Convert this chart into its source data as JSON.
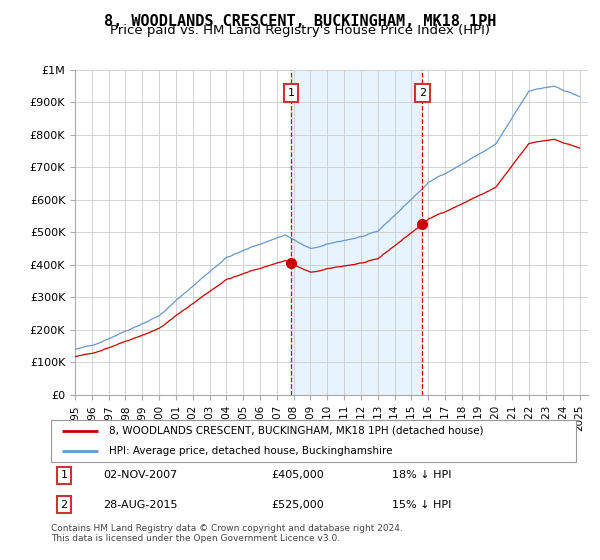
{
  "title": "8, WOODLANDS CRESCENT, BUCKINGHAM, MK18 1PH",
  "subtitle": "Price paid vs. HM Land Registry's House Price Index (HPI)",
  "legend_line1": "8, WOODLANDS CRESCENT, BUCKINGHAM, MK18 1PH (detached house)",
  "legend_line2": "HPI: Average price, detached house, Buckinghamshire",
  "table_row1_date": "02-NOV-2007",
  "table_row1_price": "£405,000",
  "table_row1_hpi": "18% ↓ HPI",
  "table_row2_date": "28-AUG-2015",
  "table_row2_price": "£525,000",
  "table_row2_hpi": "15% ↓ HPI",
  "footer": "Contains HM Land Registry data © Crown copyright and database right 2024.\nThis data is licensed under the Open Government Licence v3.0.",
  "sale1_year": 2007.84,
  "sale1_price": 405000,
  "sale2_year": 2015.65,
  "sale2_price": 525000,
  "ylim_min": 0,
  "ylim_max": 1000000,
  "xlim_min": 1995.0,
  "xlim_max": 2025.5,
  "line_red": "#cc0000",
  "line_blue": "#6699cc",
  "shade_color": "#ddeeff",
  "vline_color": "#cc0000",
  "background_color": "#ffffff",
  "grid_color": "#cccccc",
  "title_fontsize": 11,
  "subtitle_fontsize": 9.5
}
